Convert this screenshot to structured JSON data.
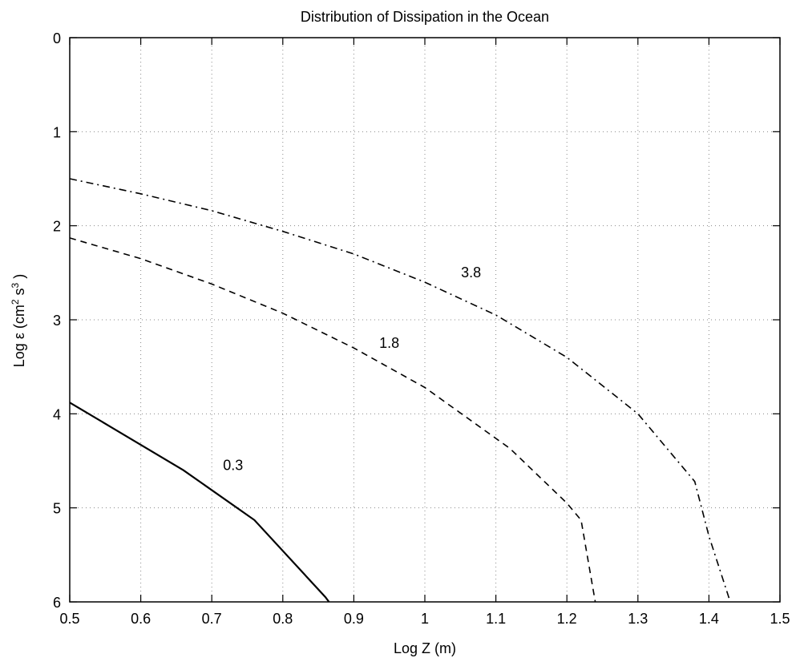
{
  "chart_data": {
    "type": "line",
    "title": "Distribution of Dissipation in the Ocean",
    "xlabel": "Log Z (m)",
    "ylabel": "Log ε (cm",
    "ylabel_sup1": "2",
    "ylabel_mid": " s",
    "ylabel_sup2": "3",
    "ylabel_end": " )",
    "xlim": [
      0.5,
      1.5
    ],
    "ylim": [
      0,
      6
    ],
    "y_inverted": true,
    "grid": true,
    "grid_style": "dotted",
    "xticks": [
      0.5,
      0.6,
      0.7,
      0.8,
      0.9,
      1,
      1.1,
      1.2,
      1.3,
      1.4,
      1.5
    ],
    "xtick_labels": [
      "0.5",
      "0.6",
      "0.7",
      "0.8",
      "0.9",
      "1",
      "1.1",
      "1.2",
      "1.3",
      "1.4",
      "1.5"
    ],
    "yticks": [
      0,
      1,
      2,
      3,
      4,
      5,
      6
    ],
    "ytick_labels": [
      "0",
      "1",
      "2",
      "3",
      "4",
      "5",
      "6"
    ],
    "series": [
      {
        "label": "0.3",
        "style": "solid",
        "label_at": [
          0.73,
          4.6
        ],
        "points": [
          [
            0.5,
            3.88
          ],
          [
            0.56,
            4.15
          ],
          [
            0.66,
            4.6
          ],
          [
            0.76,
            5.13
          ],
          [
            0.86,
            5.95
          ],
          [
            0.865,
            6.0
          ]
        ]
      },
      {
        "label": "1.8",
        "style": "dashed",
        "label_at": [
          0.95,
          3.3
        ],
        "points": [
          [
            0.5,
            2.13
          ],
          [
            0.6,
            2.35
          ],
          [
            0.7,
            2.62
          ],
          [
            0.8,
            2.93
          ],
          [
            0.9,
            3.3
          ],
          [
            1.0,
            3.72
          ],
          [
            1.12,
            4.37
          ],
          [
            1.2,
            4.95
          ],
          [
            1.22,
            5.13
          ],
          [
            1.24,
            6.0
          ]
        ]
      },
      {
        "label": "3.8",
        "style": "dashdot",
        "label_at": [
          1.065,
          2.55
        ],
        "points": [
          [
            0.5,
            1.5
          ],
          [
            0.6,
            1.66
          ],
          [
            0.7,
            1.84
          ],
          [
            0.8,
            2.06
          ],
          [
            0.9,
            2.3
          ],
          [
            1.0,
            2.6
          ],
          [
            1.1,
            2.95
          ],
          [
            1.2,
            3.4
          ],
          [
            1.3,
            4.0
          ],
          [
            1.38,
            4.72
          ],
          [
            1.4,
            5.3
          ],
          [
            1.43,
            6.0
          ]
        ]
      }
    ]
  }
}
